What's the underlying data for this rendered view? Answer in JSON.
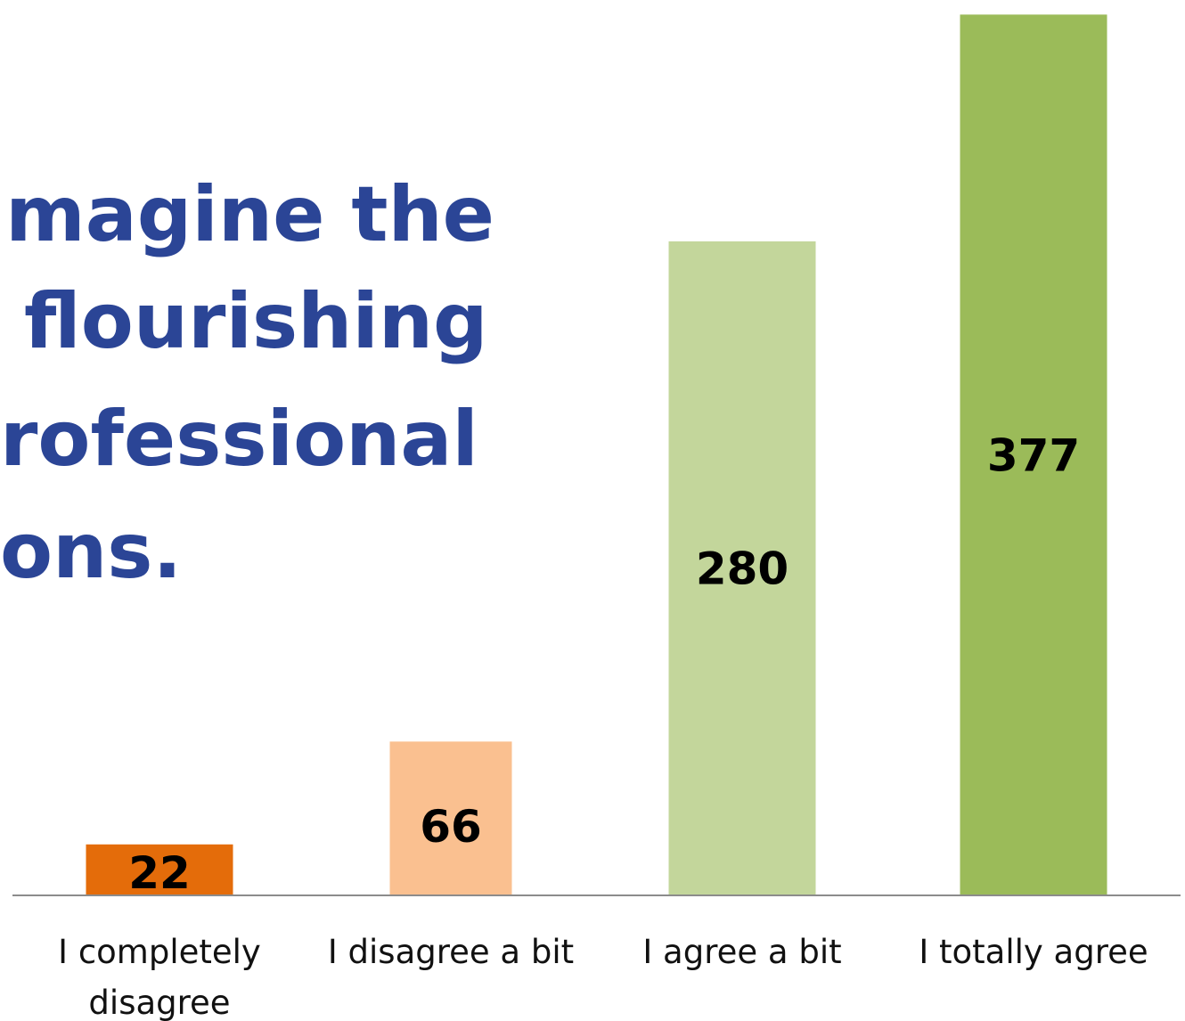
{
  "title_lines": [
    "t imagine the",
    "flourishing",
    "rofessional",
    "ons."
  ],
  "chart_data": {
    "type": "bar",
    "categories": [
      [
        "I completely",
        "disagree"
      ],
      [
        "I disagree a bit"
      ],
      [
        "I agree a bit"
      ],
      [
        "I totally agree"
      ]
    ],
    "values": [
      22,
      66,
      280,
      377
    ],
    "data_labels": [
      "22",
      "66",
      "280",
      "377"
    ],
    "colors": [
      "#e46c0a",
      "#fac090",
      "#c3d69b",
      "#9bbb59"
    ],
    "ylim": [
      0,
      380
    ],
    "grid": false,
    "legend": "none"
  }
}
